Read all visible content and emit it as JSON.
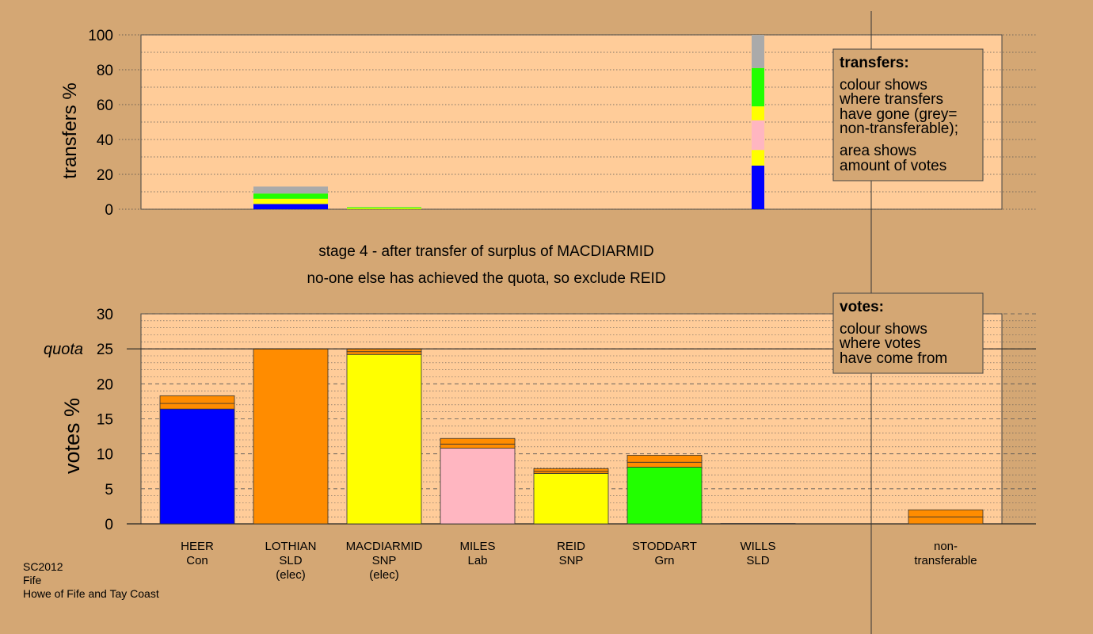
{
  "colors": {
    "background": "#d4a774",
    "plot_bg": "#ffcc99",
    "blue": "#0000ff",
    "orange": "#ff8c00",
    "yellow": "#ffff00",
    "pink": "#ffb6c1",
    "green": "#22ff00",
    "grey": "#aaaaaa"
  },
  "titles": {
    "stage": "stage 4 - after transfer of surplus of MACDIARMID",
    "note": "no-one else has achieved the quota, so exclude REID"
  },
  "footer": {
    "line1": "SC2012",
    "line2": "Fife",
    "line3": "Howe of Fife and Tay Coast"
  },
  "legend_transfers": {
    "title": "transfers:",
    "line1": "colour shows",
    "line2": "where transfers",
    "line3": "have gone (grey=",
    "line4": "non-transferable);",
    "line5": "area shows",
    "line6": "amount of votes"
  },
  "legend_votes": {
    "title": "votes:",
    "line1": "colour shows",
    "line2": "where votes",
    "line3": "have come from"
  },
  "chart_data": [
    {
      "type": "bar",
      "stacked": true,
      "ylabel": "transfers %",
      "ylim": [
        0,
        100
      ],
      "yticks": [
        0,
        20,
        40,
        60,
        80,
        100
      ],
      "grid": true,
      "bars": [
        {
          "candidate": "LOTHIAN",
          "segments": [
            {
              "color": "blue",
              "value": 3
            },
            {
              "color": "yellow",
              "value": 3
            },
            {
              "color": "green",
              "value": 3
            },
            {
              "color": "grey",
              "value": 4
            }
          ]
        },
        {
          "candidate": "MACDIARMID",
          "segments": [
            {
              "color": "yellow",
              "value": 0.5
            },
            {
              "color": "green",
              "value": 0.6
            }
          ]
        },
        {
          "candidate": "REID",
          "segments": [
            {
              "color": "blue",
              "value": 25
            },
            {
              "color": "yellow",
              "value": 9
            },
            {
              "color": "pink",
              "value": 17
            },
            {
              "color": "yellow",
              "value": 8
            },
            {
              "color": "green",
              "value": 22
            },
            {
              "color": "grey",
              "value": 19
            }
          ]
        }
      ]
    },
    {
      "type": "bar",
      "stacked": true,
      "ylabel": "votes %",
      "ylim": [
        0,
        30
      ],
      "yticks": [
        0,
        5,
        10,
        15,
        20,
        25,
        30
      ],
      "quota": 25,
      "quota_label": "quota",
      "grid": true,
      "categories": [
        {
          "name": "HEER",
          "party": "Con",
          "status": ""
        },
        {
          "name": "LOTHIAN",
          "party": "SLD",
          "status": "(elec)"
        },
        {
          "name": "MACDIARMID",
          "party": "SNP",
          "status": "(elec)"
        },
        {
          "name": "MILES",
          "party": "Lab",
          "status": ""
        },
        {
          "name": "REID",
          "party": "SNP",
          "status": ""
        },
        {
          "name": "STODDART",
          "party": "Grn",
          "status": ""
        },
        {
          "name": "WILLS",
          "party": "SLD",
          "status": ""
        },
        {
          "name": "non-",
          "party": "transferable",
          "status": ""
        }
      ],
      "bars": [
        {
          "candidate": "HEER",
          "segments": [
            {
              "color": "blue",
              "value": 16.4
            },
            {
              "color": "orange",
              "value": 0.8
            },
            {
              "color": "orange",
              "value": 1.1
            }
          ]
        },
        {
          "candidate": "LOTHIAN",
          "segments": [
            {
              "color": "orange",
              "value": 25
            }
          ]
        },
        {
          "candidate": "MACDIARMID",
          "segments": [
            {
              "color": "yellow",
              "value": 24.2
            },
            {
              "color": "orange",
              "value": 0.4
            },
            {
              "color": "orange",
              "value": 0.4
            }
          ]
        },
        {
          "candidate": "MILES",
          "segments": [
            {
              "color": "pink",
              "value": 10.8
            },
            {
              "color": "orange",
              "value": 0.6
            },
            {
              "color": "orange",
              "value": 0.8
            }
          ]
        },
        {
          "candidate": "REID",
          "segments": [
            {
              "color": "yellow",
              "value": 7.2
            },
            {
              "color": "orange",
              "value": 0.3
            },
            {
              "color": "orange",
              "value": 0.4
            }
          ]
        },
        {
          "candidate": "STODDART",
          "segments": [
            {
              "color": "green",
              "value": 8.1
            },
            {
              "color": "orange",
              "value": 0.7
            },
            {
              "color": "orange",
              "value": 1.0
            }
          ]
        },
        {
          "candidate": "WILLS",
          "segments": [
            {
              "color": "orange",
              "value": 0.05
            }
          ]
        },
        {
          "candidate": "non-transferable",
          "segments": [
            {
              "color": "orange",
              "value": 1.0
            },
            {
              "color": "orange",
              "value": 1.0
            }
          ]
        }
      ]
    }
  ]
}
